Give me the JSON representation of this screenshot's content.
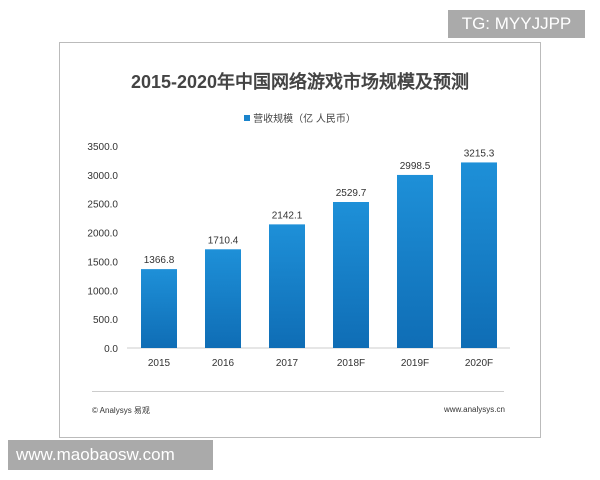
{
  "chart_data": {
    "type": "bar",
    "title": "2015-2020年中国网络游戏市场规模及预测",
    "categories": [
      "2015",
      "2016",
      "2017",
      "2018F",
      "2019F",
      "2020F"
    ],
    "series": [
      {
        "name": "营收规模（亿 人民币）",
        "values": [
          1366.8,
          1710.4,
          2142.1,
          2529.7,
          2998.5,
          3215.3
        ]
      }
    ],
    "data_labels": [
      "1366.8",
      "1710.4",
      "2142.1",
      "2529.7",
      "2998.5",
      "3215.3"
    ],
    "ylim": [
      0,
      3500
    ],
    "yticks": [
      "0.0",
      "500.0",
      "1000.0",
      "1500.0",
      "2000.0",
      "2500.0",
      "3000.0",
      "3500.0"
    ],
    "grid": false,
    "legend": "top",
    "color": "#1a84cc"
  },
  "footer": {
    "copyright": "© Analysys 易观",
    "site": "www.analysys.cn"
  },
  "watermarks": {
    "top": "TG: MYYJJPP",
    "bottom": "www.maobaosw.com"
  }
}
